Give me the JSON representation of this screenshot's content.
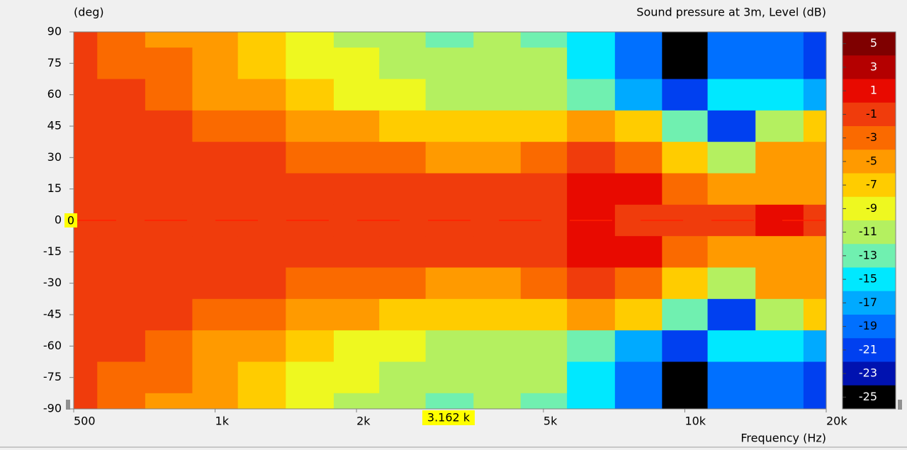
{
  "chart_data": {
    "type": "heatmap",
    "title": "Sound pressure at 3m, Level  (dB)",
    "y_label": "(deg)",
    "x_label": "Frequency  (Hz)",
    "log_x": true,
    "xlim": [
      500,
      20000
    ],
    "xticks": [
      500,
      {
        "value": 1000,
        "label": "1k"
      },
      {
        "value": 2000,
        "label": "2k"
      },
      {
        "value": 5000,
        "label": "5k"
      },
      {
        "value": 10000,
        "label": "10k"
      },
      {
        "value": 20000,
        "label": "20k"
      }
    ],
    "ylim": [
      -90,
      90
    ],
    "yticks": [
      90,
      75,
      60,
      45,
      30,
      15,
      0,
      -15,
      -30,
      -45,
      -60,
      -75,
      -90
    ],
    "x": [
      500,
      630,
      800,
      1000,
      1250,
      1600,
      2000,
      2500,
      3150,
      4000,
      5000,
      6300,
      8000,
      10000,
      12500,
      16000,
      20000
    ],
    "y": [
      90,
      75,
      60,
      45,
      30,
      15,
      0,
      -15,
      -30,
      -45,
      -60,
      -75,
      -90
    ],
    "z": [
      [
        -1,
        -3,
        -4.5,
        -6,
        -7.5,
        -9,
        -10.5,
        -11.5,
        -12.5,
        -12,
        -12.5,
        -16,
        -20,
        -26,
        -20,
        -20,
        -22
      ],
      [
        -1,
        -2.5,
        -4,
        -5.5,
        -7,
        -8.5,
        -10,
        -11,
        -12,
        -12,
        -12,
        -15,
        -19,
        -25,
        -19,
        -19,
        -21
      ],
      [
        -1,
        -2,
        -3.5,
        -5,
        -6,
        -7,
        -8.5,
        -10,
        -11,
        -11,
        -11,
        -13,
        -17,
        -21,
        -15,
        -15,
        -17
      ],
      [
        -1,
        -1.5,
        -2,
        -3,
        -4,
        -5,
        -6,
        -7,
        -7.5,
        -8,
        -8,
        -6,
        -8,
        -13,
        -22,
        -12,
        -8
      ],
      [
        -1,
        -1,
        -1,
        -1,
        -2,
        -3,
        -3.5,
        -4,
        -4.5,
        -5,
        -3.5,
        -1,
        -2.5,
        -7,
        -11,
        -6,
        -5
      ],
      [
        -1,
        -1,
        -1,
        -1,
        -1,
        -1,
        -1,
        -1,
        -1,
        -1.5,
        -2,
        0.5,
        0,
        -3,
        -5,
        -5,
        -5
      ],
      [
        -1,
        -1,
        -1,
        -1,
        -1,
        -1,
        -1,
        -1,
        -1,
        -1,
        -1,
        0.5,
        -1,
        -1,
        -1,
        0,
        -1
      ],
      [
        -1,
        -1,
        -1,
        -1,
        -1,
        -1,
        -1,
        -1,
        -1,
        -1.5,
        -2,
        0.5,
        0,
        -3,
        -5,
        -5,
        -5
      ],
      [
        -1,
        -1,
        -1,
        -1,
        -2,
        -3,
        -3.5,
        -4,
        -4.5,
        -5,
        -3.5,
        -1,
        -2.5,
        -7,
        -11,
        -6,
        -5
      ],
      [
        -1,
        -1.5,
        -2,
        -3,
        -4,
        -5,
        -6,
        -7,
        -7.5,
        -8,
        -8,
        -6,
        -8,
        -13,
        -22,
        -12,
        -8
      ],
      [
        -1,
        -2,
        -3.5,
        -5,
        -6,
        -7,
        -8.5,
        -10,
        -11,
        -11,
        -11,
        -13,
        -17,
        -21,
        -15,
        -15,
        -17
      ],
      [
        -1,
        -2.5,
        -4,
        -5.5,
        -7,
        -8.5,
        -10,
        -11,
        -12,
        -12,
        -12,
        -15,
        -19,
        -25,
        -19,
        -19,
        -21
      ],
      [
        -1,
        -3,
        -4.5,
        -6,
        -7.5,
        -9,
        -10.5,
        -11.5,
        -12.5,
        -12,
        -12.5,
        -16,
        -20,
        -26,
        -20,
        -20,
        -22
      ]
    ],
    "colorbar": {
      "levels": [
        5,
        3,
        1,
        -1,
        -3,
        -5,
        -7,
        -9,
        -11,
        -13,
        -15,
        -17,
        -19,
        -21,
        -23,
        -25
      ],
      "colors": [
        "#7f0000",
        "#b40000",
        "#e80a00",
        "#f03c0c",
        "#fa6a00",
        "#ff9a00",
        "#ffcc00",
        "#eef820",
        "#b4f060",
        "#70f0b0",
        "#00e8ff",
        "#00aaff",
        "#0070ff",
        "#0040f0",
        "#0012b0",
        "#000000"
      ]
    },
    "cursor": {
      "x": {
        "value": 3162,
        "label": "3.162 k"
      },
      "y": 0,
      "color": "#ff2000"
    }
  }
}
